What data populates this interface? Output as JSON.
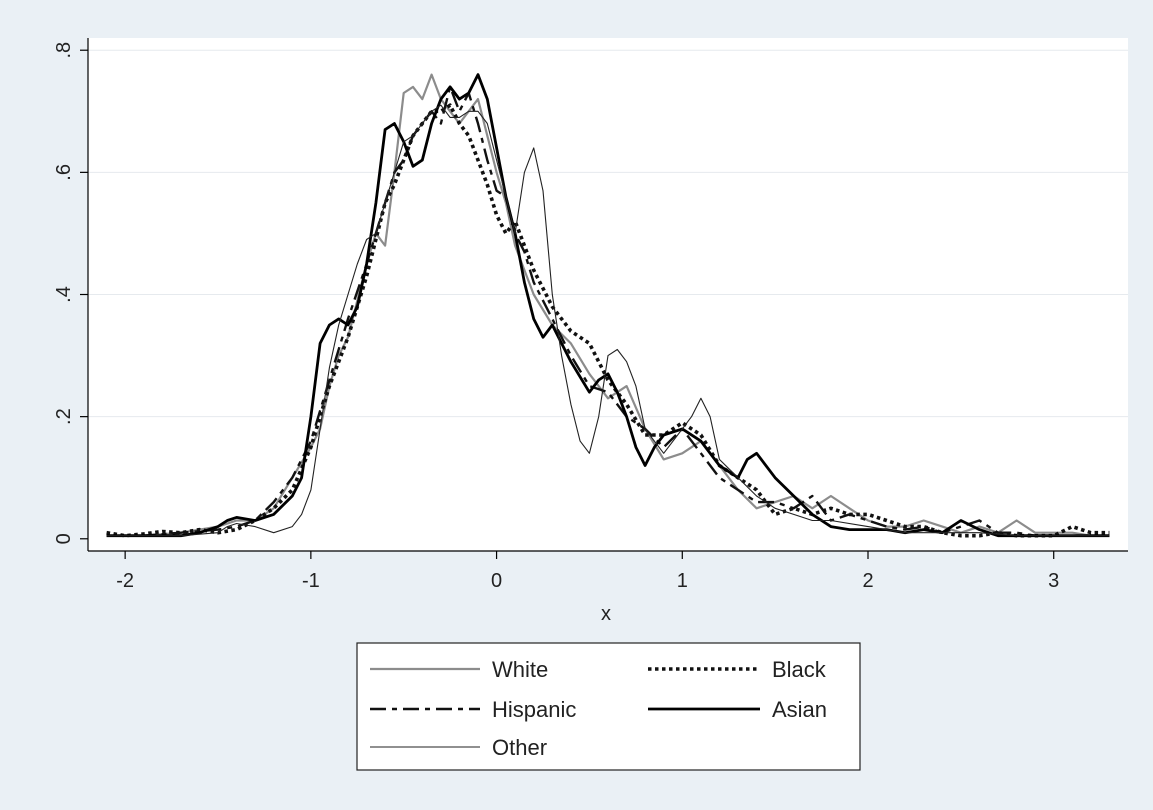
{
  "chart_data": {
    "type": "line",
    "title": "",
    "xlabel": "x",
    "ylabel": "",
    "xlim": [
      -2.2,
      3.4
    ],
    "ylim": [
      -0.02,
      0.82
    ],
    "x_ticks": [
      -2,
      -1,
      0,
      1,
      2,
      3
    ],
    "x_tick_labels": [
      "-2",
      "-1",
      "0",
      "1",
      "2",
      "3"
    ],
    "y_ticks": [
      0,
      0.2,
      0.4,
      0.6,
      0.8
    ],
    "y_tick_labels": [
      "0",
      ".2",
      ".4",
      ".6",
      ".8"
    ],
    "grid": "horizontal",
    "legend_position": "bottom",
    "series": [
      {
        "name": "White",
        "style": "solid-gray",
        "color": "#8c8c8c",
        "x": [
          -2.1,
          -1.9,
          -1.7,
          -1.5,
          -1.4,
          -1.3,
          -1.2,
          -1.1,
          -1.0,
          -0.95,
          -0.9,
          -0.85,
          -0.8,
          -0.7,
          -0.65,
          -0.6,
          -0.55,
          -0.5,
          -0.45,
          -0.4,
          -0.35,
          -0.3,
          -0.25,
          -0.2,
          -0.15,
          -0.1,
          -0.05,
          0.0,
          0.05,
          0.1,
          0.15,
          0.2,
          0.3,
          0.4,
          0.5,
          0.6,
          0.7,
          0.8,
          0.9,
          1.0,
          1.1,
          1.2,
          1.3,
          1.4,
          1.5,
          1.6,
          1.7,
          1.8,
          1.9,
          2.0,
          2.1,
          2.2,
          2.3,
          2.4,
          2.5,
          2.6,
          2.7,
          2.8,
          2.9,
          3.0,
          3.1,
          3.2,
          3.3
        ],
        "y": [
          0.005,
          0.005,
          0.01,
          0.02,
          0.03,
          0.03,
          0.05,
          0.1,
          0.15,
          0.18,
          0.25,
          0.3,
          0.33,
          0.45,
          0.5,
          0.48,
          0.6,
          0.73,
          0.74,
          0.72,
          0.76,
          0.72,
          0.7,
          0.68,
          0.7,
          0.72,
          0.66,
          0.6,
          0.55,
          0.48,
          0.44,
          0.4,
          0.35,
          0.32,
          0.27,
          0.23,
          0.25,
          0.18,
          0.13,
          0.14,
          0.16,
          0.12,
          0.08,
          0.05,
          0.06,
          0.07,
          0.05,
          0.07,
          0.05,
          0.03,
          0.02,
          0.02,
          0.03,
          0.02,
          0.01,
          0.02,
          0.01,
          0.03,
          0.01,
          0.01,
          0.01,
          0.005,
          0.005
        ]
      },
      {
        "name": "Black",
        "style": "dotted",
        "color": "#111111",
        "x": [
          -2.1,
          -2.0,
          -1.9,
          -1.8,
          -1.7,
          -1.6,
          -1.5,
          -1.4,
          -1.3,
          -1.2,
          -1.1,
          -1.0,
          -0.9,
          -0.8,
          -0.7,
          -0.6,
          -0.55,
          -0.5,
          -0.45,
          -0.4,
          -0.35,
          -0.3,
          -0.25,
          -0.2,
          -0.15,
          -0.1,
          -0.05,
          0.0,
          0.05,
          0.1,
          0.15,
          0.2,
          0.3,
          0.4,
          0.5,
          0.6,
          0.7,
          0.8,
          0.9,
          1.0,
          1.1,
          1.2,
          1.3,
          1.4,
          1.5,
          1.6,
          1.7,
          1.8,
          1.9,
          2.0,
          2.1,
          2.2,
          2.3,
          2.4,
          2.5,
          2.6,
          2.7,
          2.8,
          2.9,
          3.0,
          3.1,
          3.2,
          3.3
        ],
        "y": [
          0.01,
          0.005,
          0.008,
          0.012,
          0.01,
          0.015,
          0.01,
          0.015,
          0.03,
          0.05,
          0.08,
          0.15,
          0.25,
          0.33,
          0.43,
          0.55,
          0.58,
          0.62,
          0.66,
          0.68,
          0.7,
          0.7,
          0.71,
          0.68,
          0.66,
          0.62,
          0.58,
          0.53,
          0.5,
          0.52,
          0.48,
          0.44,
          0.38,
          0.34,
          0.32,
          0.26,
          0.22,
          0.17,
          0.17,
          0.19,
          0.17,
          0.12,
          0.1,
          0.08,
          0.04,
          0.05,
          0.04,
          0.05,
          0.04,
          0.04,
          0.03,
          0.02,
          0.02,
          0.01,
          0.005,
          0.005,
          0.01,
          0.005,
          0.005,
          0.005,
          0.02,
          0.01,
          0.01
        ]
      },
      {
        "name": "Hispanic",
        "style": "dash-dot",
        "color": "#111111",
        "x": [
          -2.1,
          -1.9,
          -1.7,
          -1.5,
          -1.4,
          -1.3,
          -1.2,
          -1.1,
          -1.0,
          -0.9,
          -0.8,
          -0.7,
          -0.6,
          -0.55,
          -0.5,
          -0.45,
          -0.4,
          -0.35,
          -0.3,
          -0.25,
          -0.2,
          -0.15,
          -0.1,
          -0.05,
          0.0,
          0.05,
          0.1,
          0.15,
          0.2,
          0.3,
          0.4,
          0.5,
          0.6,
          0.7,
          0.8,
          0.9,
          1.0,
          1.1,
          1.2,
          1.3,
          1.4,
          1.5,
          1.6,
          1.7,
          1.8,
          1.9,
          2.0,
          2.1,
          2.2,
          2.3,
          2.4,
          2.5,
          2.6,
          2.7,
          2.8,
          2.9,
          3.0,
          3.1,
          3.2,
          3.3
        ],
        "y": [
          0.005,
          0.005,
          0.01,
          0.015,
          0.02,
          0.03,
          0.06,
          0.1,
          0.16,
          0.26,
          0.36,
          0.45,
          0.55,
          0.6,
          0.62,
          0.66,
          0.68,
          0.7,
          0.68,
          0.74,
          0.7,
          0.73,
          0.68,
          0.62,
          0.57,
          0.56,
          0.5,
          0.47,
          0.42,
          0.36,
          0.3,
          0.25,
          0.24,
          0.2,
          0.18,
          0.15,
          0.18,
          0.14,
          0.1,
          0.08,
          0.06,
          0.06,
          0.05,
          0.07,
          0.03,
          0.04,
          0.03,
          0.02,
          0.015,
          0.02,
          0.01,
          0.02,
          0.03,
          0.01,
          0.01,
          0.005,
          0.005,
          0.005,
          0.005,
          0.005
        ]
      },
      {
        "name": "Asian",
        "style": "solid-thick",
        "color": "#000000",
        "x": [
          -2.1,
          -1.9,
          -1.7,
          -1.6,
          -1.5,
          -1.45,
          -1.4,
          -1.3,
          -1.2,
          -1.1,
          -1.05,
          -1.0,
          -0.95,
          -0.9,
          -0.85,
          -0.8,
          -0.75,
          -0.7,
          -0.65,
          -0.6,
          -0.55,
          -0.5,
          -0.45,
          -0.4,
          -0.35,
          -0.3,
          -0.25,
          -0.2,
          -0.15,
          -0.1,
          -0.05,
          0.0,
          0.05,
          0.1,
          0.15,
          0.2,
          0.25,
          0.3,
          0.4,
          0.5,
          0.55,
          0.6,
          0.65,
          0.7,
          0.75,
          0.8,
          0.85,
          0.9,
          1.0,
          1.1,
          1.2,
          1.3,
          1.35,
          1.4,
          1.5,
          1.6,
          1.7,
          1.8,
          1.9,
          2.0,
          2.1,
          2.2,
          2.3,
          2.4,
          2.5,
          2.6,
          2.7,
          2.8,
          2.9,
          3.0,
          3.1,
          3.2,
          3.3
        ],
        "y": [
          0.005,
          0.005,
          0.005,
          0.01,
          0.02,
          0.03,
          0.035,
          0.03,
          0.04,
          0.07,
          0.1,
          0.2,
          0.32,
          0.35,
          0.36,
          0.35,
          0.38,
          0.45,
          0.55,
          0.67,
          0.68,
          0.65,
          0.61,
          0.62,
          0.68,
          0.72,
          0.74,
          0.72,
          0.73,
          0.76,
          0.72,
          0.64,
          0.56,
          0.5,
          0.42,
          0.36,
          0.33,
          0.35,
          0.29,
          0.24,
          0.26,
          0.27,
          0.24,
          0.2,
          0.15,
          0.12,
          0.15,
          0.17,
          0.18,
          0.16,
          0.12,
          0.1,
          0.13,
          0.14,
          0.1,
          0.07,
          0.04,
          0.02,
          0.015,
          0.015,
          0.015,
          0.01,
          0.015,
          0.01,
          0.03,
          0.015,
          0.005,
          0.005,
          0.005,
          0.005,
          0.005,
          0.005,
          0.005
        ]
      },
      {
        "name": "Other",
        "style": "solid-thin",
        "color": "#222222",
        "x": [
          -2.1,
          -1.9,
          -1.7,
          -1.5,
          -1.45,
          -1.4,
          -1.3,
          -1.2,
          -1.1,
          -1.05,
          -1.0,
          -0.95,
          -0.9,
          -0.85,
          -0.8,
          -0.75,
          -0.7,
          -0.65,
          -0.6,
          -0.55,
          -0.5,
          -0.45,
          -0.4,
          -0.35,
          -0.3,
          -0.25,
          -0.2,
          -0.15,
          -0.1,
          -0.05,
          0.0,
          0.05,
          0.1,
          0.15,
          0.2,
          0.25,
          0.3,
          0.35,
          0.4,
          0.45,
          0.5,
          0.55,
          0.6,
          0.65,
          0.7,
          0.75,
          0.8,
          0.9,
          1.0,
          1.05,
          1.1,
          1.15,
          1.2,
          1.3,
          1.4,
          1.5,
          1.6,
          1.7,
          1.8,
          2.0,
          2.2,
          2.4,
          2.6,
          2.8,
          3.0,
          3.2,
          3.3
        ],
        "y": [
          0.005,
          0.005,
          0.005,
          0.01,
          0.02,
          0.025,
          0.02,
          0.01,
          0.02,
          0.04,
          0.08,
          0.18,
          0.28,
          0.35,
          0.4,
          0.45,
          0.49,
          0.5,
          0.55,
          0.6,
          0.65,
          0.66,
          0.68,
          0.7,
          0.71,
          0.69,
          0.69,
          0.7,
          0.7,
          0.68,
          0.62,
          0.56,
          0.5,
          0.6,
          0.64,
          0.57,
          0.4,
          0.3,
          0.22,
          0.16,
          0.14,
          0.2,
          0.3,
          0.31,
          0.29,
          0.25,
          0.18,
          0.14,
          0.18,
          0.2,
          0.23,
          0.2,
          0.13,
          0.1,
          0.07,
          0.05,
          0.04,
          0.03,
          0.03,
          0.02,
          0.01,
          0.01,
          0.01,
          0.005,
          0.005,
          0.005,
          0.005
        ]
      }
    ]
  }
}
